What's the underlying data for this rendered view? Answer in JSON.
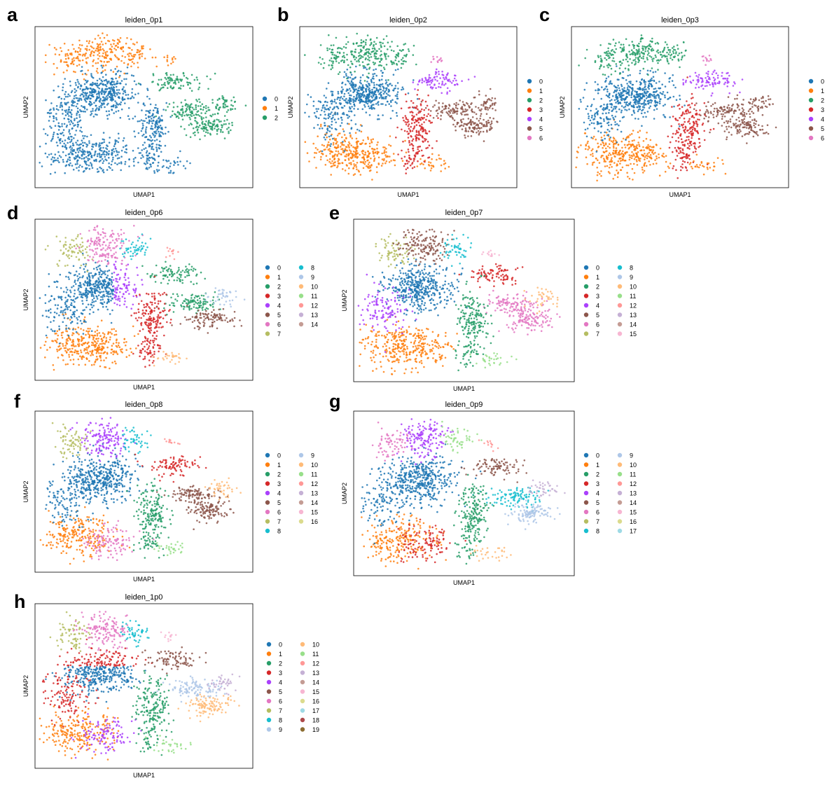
{
  "palette": [
    "#1f77b4",
    "#ff7f0e",
    "#279e68",
    "#d62728",
    "#aa40fc",
    "#8c564b",
    "#e377c2",
    "#b5bd61",
    "#17becf",
    "#aec7e8",
    "#ffbb78",
    "#98df8a",
    "#ff9896",
    "#c5b0d5",
    "#c49c94",
    "#f7b6d2",
    "#dbdb8d",
    "#9edae5",
    "#ad494a",
    "#8c6d31"
  ],
  "chart_data": [
    {
      "type": "scatter",
      "panel": "a",
      "title": "leiden_0p1",
      "xlabel": "UMAP1",
      "ylabel": "UMAP2",
      "legend_position": "right",
      "legend_columns": 1,
      "categories": [
        "0",
        "1",
        "2"
      ]
    },
    {
      "type": "scatter",
      "panel": "b",
      "title": "leiden_0p2",
      "xlabel": "UMAP1",
      "ylabel": "UMAP2",
      "legend_position": "right",
      "legend_columns": 1,
      "categories": [
        "0",
        "1",
        "2",
        "3",
        "4",
        "5",
        "6"
      ]
    },
    {
      "type": "scatter",
      "panel": "c",
      "title": "leiden_0p3",
      "xlabel": "UMAP1",
      "ylabel": "UMAP2",
      "legend_position": "right",
      "legend_columns": 1,
      "categories": [
        "0",
        "1",
        "2",
        "3",
        "4",
        "5",
        "6"
      ]
    },
    {
      "type": "scatter",
      "panel": "d",
      "title": "leiden_0p6",
      "xlabel": "UMAP1",
      "ylabel": "UMAP2",
      "legend_position": "right",
      "legend_columns": 2,
      "categories": [
        "0",
        "1",
        "2",
        "3",
        "4",
        "5",
        "6",
        "7",
        "8",
        "9",
        "10",
        "11",
        "12",
        "13",
        "14"
      ]
    },
    {
      "type": "scatter",
      "panel": "e",
      "title": "leiden_0p7",
      "xlabel": "UMAP1",
      "ylabel": "UMAP2",
      "legend_position": "right",
      "legend_columns": 2,
      "categories": [
        "0",
        "1",
        "2",
        "3",
        "4",
        "5",
        "6",
        "7",
        "8",
        "9",
        "10",
        "11",
        "12",
        "13",
        "14",
        "15"
      ]
    },
    {
      "type": "scatter",
      "panel": "f",
      "title": "leiden_0p8",
      "xlabel": "UMAP1",
      "ylabel": "UMAP2",
      "legend_position": "right",
      "legend_columns": 2,
      "categories": [
        "0",
        "1",
        "2",
        "3",
        "4",
        "5",
        "6",
        "7",
        "8",
        "9",
        "10",
        "11",
        "12",
        "13",
        "14",
        "15",
        "16"
      ]
    },
    {
      "type": "scatter",
      "panel": "g",
      "title": "leiden_0p9",
      "xlabel": "UMAP1",
      "ylabel": "UMAP2",
      "legend_position": "right",
      "legend_columns": 2,
      "categories": [
        "0",
        "1",
        "2",
        "3",
        "4",
        "5",
        "6",
        "7",
        "8",
        "9",
        "10",
        "11",
        "12",
        "13",
        "14",
        "15",
        "16",
        "17"
      ]
    },
    {
      "type": "scatter",
      "panel": "h",
      "title": "leiden_1p0",
      "xlabel": "UMAP1",
      "ylabel": "UMAP2",
      "legend_position": "right",
      "legend_columns": 2,
      "categories": [
        "0",
        "1",
        "2",
        "3",
        "4",
        "5",
        "6",
        "7",
        "8",
        "9",
        "10",
        "11",
        "12",
        "13",
        "14",
        "15",
        "16",
        "17",
        "18",
        "19"
      ]
    }
  ]
}
